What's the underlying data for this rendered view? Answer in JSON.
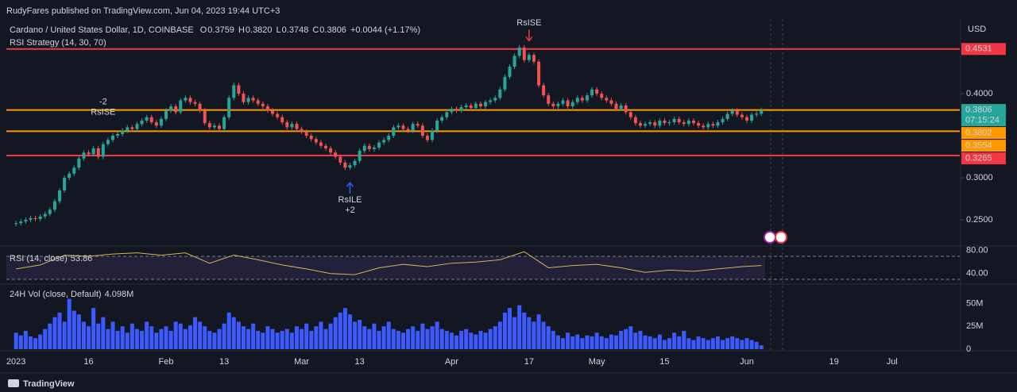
{
  "header": {
    "publisher": "RudyFares published on TradingView.com, Jun 04, 2023 19:44 UTC+3",
    "brand": "TradingView",
    "currency": "USD",
    "strategy": "RSI Strategy (14, 30, 70)"
  },
  "chart_data": {
    "type": "candlestick",
    "title": "Cardano / United States Dollar, 1D, COINBASE",
    "ohlc": [
      {
        "label": "O",
        "value": 0.3759,
        "value_label": "0.3759"
      },
      {
        "label": "H",
        "value": 0.382,
        "value_label": "0.3820"
      },
      {
        "label": "L",
        "value": 0.3748,
        "value_label": "0.3748"
      },
      {
        "label": "C",
        "value": 0.3806,
        "value_label": "0.3806"
      }
    ],
    "change": "+0.0044 (+1.17%)",
    "up_color": "#26a69a",
    "down_color": "#ef5350",
    "xlim": [
      -2,
      195
    ],
    "xticks": [
      {
        "value": 0,
        "label": "2023"
      },
      {
        "value": 15,
        "label": "16"
      },
      {
        "value": 31,
        "label": "Feb"
      },
      {
        "value": 43,
        "label": "13"
      },
      {
        "value": 59,
        "label": "Mar"
      },
      {
        "value": 71,
        "label": "13"
      },
      {
        "value": 90,
        "label": "Apr"
      },
      {
        "value": 106,
        "label": "17"
      },
      {
        "value": 120,
        "label": "May"
      },
      {
        "value": 134,
        "label": "15"
      },
      {
        "value": 151,
        "label": "Jun"
      },
      {
        "value": 169,
        "label": "19"
      },
      {
        "value": 181,
        "label": "Jul"
      }
    ],
    "x": [
      0,
      1,
      2,
      3,
      4,
      5,
      6,
      7,
      8,
      9,
      10,
      11,
      12,
      13,
      14,
      15,
      16,
      17,
      18,
      19,
      20,
      21,
      22,
      23,
      24,
      25,
      26,
      27,
      28,
      29,
      30,
      31,
      32,
      33,
      34,
      35,
      36,
      37,
      38,
      39,
      40,
      41,
      42,
      43,
      44,
      45,
      46,
      47,
      48,
      49,
      50,
      51,
      52,
      53,
      54,
      55,
      56,
      57,
      58,
      59,
      60,
      61,
      62,
      63,
      64,
      65,
      66,
      67,
      68,
      69,
      70,
      71,
      72,
      73,
      74,
      75,
      76,
      77,
      78,
      79,
      80,
      81,
      82,
      83,
      84,
      85,
      86,
      87,
      88,
      89,
      90,
      91,
      92,
      93,
      94,
      95,
      96,
      97,
      98,
      99,
      100,
      101,
      102,
      103,
      104,
      105,
      106,
      107,
      108,
      109,
      110,
      111,
      112,
      113,
      114,
      115,
      116,
      117,
      118,
      119,
      120,
      121,
      122,
      123,
      124,
      125,
      126,
      127,
      128,
      129,
      130,
      131,
      132,
      133,
      134,
      135,
      136,
      137,
      138,
      139,
      140,
      141,
      142,
      143,
      144,
      145,
      146,
      147,
      148,
      149,
      150,
      151,
      152,
      153,
      154
    ],
    "close": [
      0.246,
      0.248,
      0.25,
      0.252,
      0.251,
      0.254,
      0.257,
      0.262,
      0.272,
      0.285,
      0.3,
      0.305,
      0.312,
      0.323,
      0.33,
      0.328,
      0.335,
      0.325,
      0.34,
      0.345,
      0.35,
      0.352,
      0.356,
      0.36,
      0.358,
      0.364,
      0.368,
      0.372,
      0.366,
      0.362,
      0.37,
      0.38,
      0.385,
      0.378,
      0.392,
      0.395,
      0.39,
      0.388,
      0.38,
      0.365,
      0.36,
      0.362,
      0.358,
      0.372,
      0.395,
      0.41,
      0.4,
      0.39,
      0.395,
      0.392,
      0.388,
      0.385,
      0.38,
      0.376,
      0.372,
      0.366,
      0.36,
      0.364,
      0.358,
      0.355,
      0.35,
      0.346,
      0.342,
      0.338,
      0.335,
      0.33,
      0.325,
      0.318,
      0.312,
      0.315,
      0.32,
      0.332,
      0.338,
      0.334,
      0.336,
      0.342,
      0.345,
      0.35,
      0.36,
      0.362,
      0.358,
      0.356,
      0.364,
      0.362,
      0.35,
      0.345,
      0.356,
      0.368,
      0.372,
      0.378,
      0.382,
      0.38,
      0.384,
      0.386,
      0.383,
      0.388,
      0.385,
      0.39,
      0.392,
      0.395,
      0.405,
      0.42,
      0.432,
      0.445,
      0.455,
      0.44,
      0.446,
      0.438,
      0.41,
      0.398,
      0.388,
      0.385,
      0.388,
      0.392,
      0.385,
      0.39,
      0.395,
      0.392,
      0.398,
      0.405,
      0.4,
      0.395,
      0.392,
      0.388,
      0.382,
      0.386,
      0.378,
      0.372,
      0.365,
      0.362,
      0.364,
      0.366,
      0.362,
      0.368,
      0.365,
      0.366,
      0.37,
      0.366,
      0.364,
      0.368,
      0.365,
      0.362,
      0.36,
      0.364,
      0.362,
      0.366,
      0.37,
      0.376,
      0.38,
      0.375,
      0.372,
      0.368,
      0.375,
      0.3762,
      0.3806
    ],
    "ylim": [
      0.2189,
      0.4925
    ],
    "yticks": [
      {
        "value": 0.4,
        "label": "0.4000"
      },
      {
        "value": 0.3,
        "label": "0.3000"
      },
      {
        "value": 0.25,
        "label": "0.2500"
      }
    ],
    "levels": [
      {
        "value": 0.4531,
        "color": "#f23645"
      },
      {
        "value": 0.3806,
        "color": "#ff9800"
      },
      {
        "value": 0.3554,
        "color": "#ff9800"
      },
      {
        "value": 0.3265,
        "color": "#f23645"
      }
    ],
    "price_labels": [
      {
        "value": 0.4531,
        "color": "#f23645"
      },
      {
        "value": 0.3806,
        "color": "#26a69a",
        "countdown": "07:15:24"
      },
      {
        "value": 0.3802,
        "color": "#ff9800"
      },
      {
        "value": 0.3554,
        "color": "#ff9800"
      },
      {
        "value": 0.3265,
        "color": "#f23645"
      }
    ],
    "signals": [
      {
        "x": 18,
        "label": "RsISE",
        "qty": "-2",
        "dir": "short"
      },
      {
        "x": 69,
        "label": "RsILE",
        "qty": "+2",
        "dir": "long",
        "arrow_color": "#2962ff"
      },
      {
        "x": 106,
        "label": "RsISE",
        "dir": "short",
        "arrow_color": "#f23645"
      }
    ],
    "rsi": {
      "name": "RSI (14, close)",
      "color": "#d8b25a",
      "band": [
        30,
        70
      ],
      "ylim": [
        23,
        88
      ],
      "yticks": [
        {
          "value": 80,
          "label": "80.00"
        },
        {
          "value": 40,
          "label": "40.00"
        }
      ],
      "x": [
        0,
        5,
        10,
        15,
        20,
        25,
        30,
        35,
        40,
        45,
        50,
        55,
        60,
        65,
        70,
        75,
        80,
        85,
        90,
        95,
        100,
        105,
        110,
        115,
        120,
        125,
        130,
        135,
        140,
        145,
        150,
        154
      ],
      "values": [
        48,
        55,
        72,
        70,
        74,
        76,
        72,
        76,
        58,
        72,
        64,
        55,
        48,
        40,
        38,
        50,
        56,
        52,
        58,
        60,
        64,
        78,
        50,
        54,
        56,
        50,
        42,
        46,
        44,
        48,
        52,
        53.86
      ]
    },
    "volume": {
      "name": "24H Vol (close, Default)",
      "color": "#3d5afe",
      "last_label": "4.098M",
      "ylim": [
        0,
        69400000
      ],
      "yticks": [
        {
          "value": 50000000,
          "label": "50M"
        },
        {
          "value": 25000000,
          "label": "25M"
        },
        0
      ],
      "values": [
        18000000.0,
        15000000.0,
        20000000.0,
        14000000.0,
        12000000.0,
        16000000.0,
        22000000.0,
        28000000.0,
        35000000.0,
        40000000.0,
        30000000.0,
        55000000.0,
        42000000.0,
        38000000.0,
        30000000.0,
        25000000.0,
        45000000.0,
        28000000.0,
        35000000.0,
        22000000.0,
        30000000.0,
        20000000.0,
        25000000.0,
        18000000.0,
        28000000.0,
        22000000.0,
        20000000.0,
        30000000.0,
        25000000.0,
        18000000.0,
        22000000.0,
        25000000.0,
        20000000.0,
        30000000.0,
        28000000.0,
        22000000.0,
        26000000.0,
        35000000.0,
        30000000.0,
        25000000.0,
        20000000.0,
        18000000.0,
        22000000.0,
        28000000.0,
        40000000.0,
        35000000.0,
        30000000.0,
        25000000.0,
        22000000.0,
        28000000.0,
        20000000.0,
        18000000.0,
        25000000.0,
        22000000.0,
        18000000.0,
        20000000.0,
        22000000.0,
        18000000.0,
        25000000.0,
        22000000.0,
        28000000.0,
        20000000.0,
        25000000.0,
        30000000.0,
        22000000.0,
        28000000.0,
        35000000.0,
        40000000.0,
        45000000.0,
        38000000.0,
        30000000.0,
        32000000.0,
        25000000.0,
        22000000.0,
        28000000.0,
        20000000.0,
        25000000.0,
        30000000.0,
        22000000.0,
        20000000.0,
        18000000.0,
        22000000.0,
        25000000.0,
        20000000.0,
        28000000.0,
        22000000.0,
        25000000.0,
        30000000.0,
        22000000.0,
        20000000.0,
        18000000.0,
        15000000.0,
        20000000.0,
        22000000.0,
        18000000.0,
        16000000.0,
        20000000.0,
        18000000.0,
        22000000.0,
        25000000.0,
        30000000.0,
        40000000.0,
        45000000.0,
        35000000.0,
        48000000.0,
        40000000.0,
        35000000.0,
        30000000.0,
        38000000.0,
        30000000.0,
        25000000.0,
        20000000.0,
        15000000.0,
        12000000.0,
        18000000.0,
        14000000.0,
        16000000.0,
        12000000.0,
        15000000.0,
        14000000.0,
        18000000.0,
        14000000.0,
        12000000.0,
        16000000.0,
        15000000.0,
        20000000.0,
        22000000.0,
        25000000.0,
        18000000.0,
        20000000.0,
        15000000.0,
        14000000.0,
        12000000.0,
        16000000.0,
        10000000.0,
        12000000.0,
        18000000.0,
        14000000.0,
        20000000.0,
        12000000.0,
        10000000.0,
        14000000.0,
        12000000.0,
        10000000.0,
        12000000.0,
        14000000.0,
        10000000.0,
        12000000.0,
        14000000.0,
        12000000.0,
        10000000.0,
        12000000.0,
        10000000.0,
        8000000.0,
        4098000
      ]
    }
  }
}
